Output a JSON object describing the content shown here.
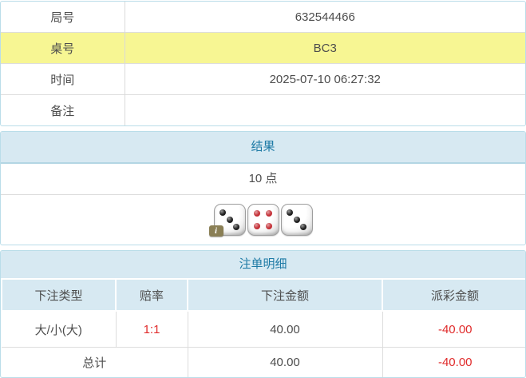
{
  "info_table": {
    "rows": [
      {
        "label": "局号",
        "value": "632544466",
        "highlight": false
      },
      {
        "label": "桌号",
        "value": "BC3",
        "highlight": true
      },
      {
        "label": "时间",
        "value": "2025-07-10 06:27:32",
        "highlight": false
      },
      {
        "label": "备注",
        "value": "",
        "highlight": false
      }
    ]
  },
  "result_section": {
    "header": "结果",
    "points": "10 点",
    "dice": [
      {
        "value": 3,
        "pip_color": "#1f1f1f",
        "has_info_badge": true
      },
      {
        "value": 4,
        "pip_color": "#c43037",
        "has_info_badge": false
      },
      {
        "value": 3,
        "pip_color": "#1f1f1f",
        "has_info_badge": false
      }
    ],
    "info_badge_label": "i"
  },
  "bet_details": {
    "header": "注单明细",
    "columns": [
      "下注类型",
      "赔率",
      "下注金额",
      "派彩金额"
    ],
    "rows": [
      {
        "bet_type": "大/小(大)",
        "odds": "1:1",
        "bet_amount": "40.00",
        "payout": "-40.00"
      }
    ],
    "total": {
      "label": "总计",
      "bet_amount": "40.00",
      "payout": "-40.00"
    }
  },
  "colors": {
    "section_header_bg": "#d7e9f2",
    "section_header_text": "#1f7ba6",
    "section_border": "#badde9",
    "highlight_row_bg": "#f7f693",
    "body_text": "#4d4d4d",
    "negative_text": "#e02b2b",
    "row_line": "#dddddd",
    "info_badge_bg": "#8a7f55"
  }
}
